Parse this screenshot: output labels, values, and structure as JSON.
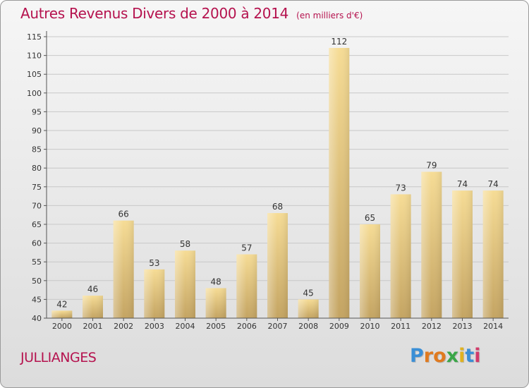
{
  "title": "Autres Revenus Divers de 2000 à 2014",
  "unit_note": "(en milliers d'€)",
  "commune": "JULLIANGES",
  "logo": {
    "letters": [
      "P",
      "r",
      "o",
      "x",
      "i",
      "t",
      "i"
    ],
    "colors": [
      "#3a8fd6",
      "#e07a1f",
      "#e07a1f",
      "#3aa648",
      "#e0b21f",
      "#3a8fd6",
      "#d23b6a"
    ]
  },
  "colors": {
    "accent": "#b5124e",
    "bar_light": "#f6dc95",
    "bar_dark": "#c4a462",
    "grid": "#c8c8c8",
    "axis": "#555555"
  },
  "chart_data": {
    "type": "bar",
    "categories": [
      "2000",
      "2001",
      "2002",
      "2003",
      "2004",
      "2005",
      "2006",
      "2007",
      "2008",
      "2009",
      "2010",
      "2011",
      "2012",
      "2013",
      "2014"
    ],
    "values": [
      42,
      46,
      66,
      53,
      58,
      48,
      57,
      68,
      45,
      112,
      65,
      73,
      79,
      74,
      74
    ],
    "data_labels": [
      "42",
      "46",
      "66",
      "53",
      "58",
      "48",
      "57",
      "68",
      "45",
      "112",
      "65",
      "73",
      "79",
      "74",
      "74"
    ],
    "yticks": [
      40,
      45,
      50,
      55,
      60,
      65,
      70,
      75,
      80,
      85,
      90,
      95,
      100,
      105,
      110,
      115
    ],
    "ylim": [
      40,
      115
    ],
    "grid": true,
    "legend": "none"
  }
}
